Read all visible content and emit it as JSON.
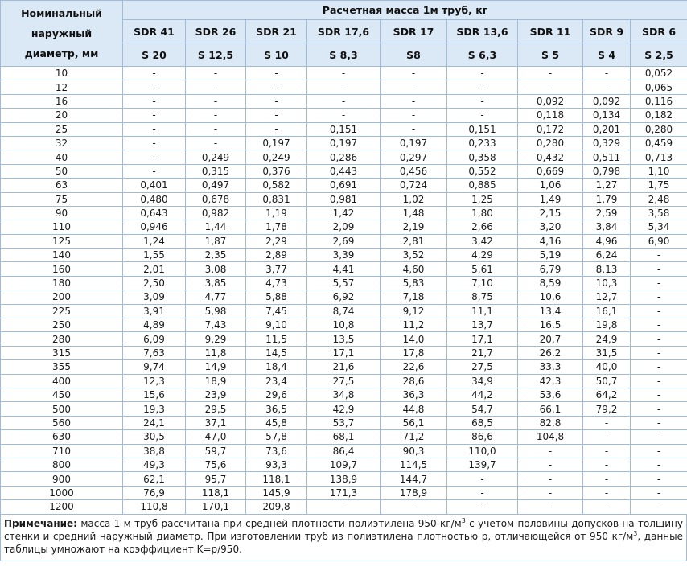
{
  "header": {
    "diameter_label": [
      "Номинальный",
      "наружный",
      "диаметр, мм"
    ],
    "title": "Расчетная масса 1м труб, кг",
    "columns": [
      {
        "sdr": "SDR 41",
        "s": "S 20"
      },
      {
        "sdr": "SDR 26",
        "s": "S 12,5"
      },
      {
        "sdr": "SDR 21",
        "s": "S 10"
      },
      {
        "sdr": "SDR 17,6",
        "s": "S 8,3"
      },
      {
        "sdr": "SDR 17",
        "s": "S8"
      },
      {
        "sdr": "SDR 13,6",
        "s": "S 6,3"
      },
      {
        "sdr": "SDR 11",
        "s": "S 5"
      },
      {
        "sdr": "SDR 9",
        "s": "S 4"
      },
      {
        "sdr": "SDR 6",
        "s": "S 2,5"
      }
    ]
  },
  "table": {
    "rows": [
      [
        "10",
        "-",
        "-",
        "-",
        "-",
        "-",
        "-",
        "-",
        "-",
        "0,052"
      ],
      [
        "12",
        "-",
        "-",
        "-",
        "-",
        "-",
        "-",
        "-",
        "-",
        "0,065"
      ],
      [
        "16",
        "-",
        "-",
        "-",
        "-",
        "-",
        "-",
        "0,092",
        "0,092",
        "0,116"
      ],
      [
        "20",
        "-",
        "-",
        "-",
        "-",
        "-",
        "-",
        "0,118",
        "0,134",
        "0,182"
      ],
      [
        "25",
        "-",
        "-",
        "-",
        "0,151",
        "-",
        "0,151",
        "0,172",
        "0,201",
        "0,280"
      ],
      [
        "32",
        "-",
        "-",
        "0,197",
        "0,197",
        "0,197",
        "0,233",
        "0,280",
        "0,329",
        "0,459"
      ],
      [
        "40",
        "-",
        "0,249",
        "0,249",
        "0,286",
        "0,297",
        "0,358",
        "0,432",
        "0,511",
        "0,713"
      ],
      [
        "50",
        "-",
        "0,315",
        "0,376",
        "0,443",
        "0,456",
        "0,552",
        "0,669",
        "0,798",
        "1,10"
      ],
      [
        "63",
        "0,401",
        "0,497",
        "0,582",
        "0,691",
        "0,724",
        "0,885",
        "1,06",
        "1,27",
        "1,75"
      ],
      [
        "75",
        "0,480",
        "0,678",
        "0,831",
        "0,981",
        "1,02",
        "1,25",
        "1,49",
        "1,79",
        "2,48"
      ],
      [
        "90",
        "0,643",
        "0,982",
        "1,19",
        "1,42",
        "1,48",
        "1,80",
        "2,15",
        "2,59",
        "3,58"
      ],
      [
        "110",
        "0,946",
        "1,44",
        "1,78",
        "2,09",
        "2,19",
        "2,66",
        "3,20",
        "3,84",
        "5,34"
      ],
      [
        "125",
        "1,24",
        "1,87",
        "2,29",
        "2,69",
        "2,81",
        "3,42",
        "4,16",
        "4,96",
        "6,90"
      ],
      [
        "140",
        "1,55",
        "2,35",
        "2,89",
        "3,39",
        "3,52",
        "4,29",
        "5,19",
        "6,24",
        "-"
      ],
      [
        "160",
        "2,01",
        "3,08",
        "3,77",
        "4,41",
        "4,60",
        "5,61",
        "6,79",
        "8,13",
        "-"
      ],
      [
        "180",
        "2,50",
        "3,85",
        "4,73",
        "5,57",
        "5,83",
        "7,10",
        "8,59",
        "10,3",
        "-"
      ],
      [
        "200",
        "3,09",
        "4,77",
        "5,88",
        "6,92",
        "7,18",
        "8,75",
        "10,6",
        "12,7",
        "-"
      ],
      [
        "225",
        "3,91",
        "5,98",
        "7,45",
        "8,74",
        "9,12",
        "11,1",
        "13,4",
        "16,1",
        "-"
      ],
      [
        "250",
        "4,89",
        "7,43",
        "9,10",
        "10,8",
        "11,2",
        "13,7",
        "16,5",
        "19,8",
        "-"
      ],
      [
        "280",
        "6,09",
        "9,29",
        "11,5",
        "13,5",
        "14,0",
        "17,1",
        "20,7",
        "24,9",
        "-"
      ],
      [
        "315",
        "7,63",
        "11,8",
        "14,5",
        "17,1",
        "17,8",
        "21,7",
        "26,2",
        "31,5",
        "-"
      ],
      [
        "355",
        "9,74",
        "14,9",
        "18,4",
        "21,6",
        "22,6",
        "27,5",
        "33,3",
        "40,0",
        "-"
      ],
      [
        "400",
        "12,3",
        "18,9",
        "23,4",
        "27,5",
        "28,6",
        "34,9",
        "42,3",
        "50,7",
        "-"
      ],
      [
        "450",
        "15,6",
        "23,9",
        "29,6",
        "34,8",
        "36,3",
        "44,2",
        "53,6",
        "64,2",
        "-"
      ],
      [
        "500",
        "19,3",
        "29,5",
        "36,5",
        "42,9",
        "44,8",
        "54,7",
        "66,1",
        "79,2",
        "-"
      ],
      [
        "560",
        "24,1",
        "37,1",
        "45,8",
        "53,7",
        "56,1",
        "68,5",
        "82,8",
        "-",
        "-"
      ],
      [
        "630",
        "30,5",
        "47,0",
        "57,8",
        "68,1",
        "71,2",
        "86,6",
        "104,8",
        "-",
        "-"
      ],
      [
        "710",
        "38,8",
        "59,7",
        "73,6",
        "86,4",
        "90,3",
        "110,0",
        "-",
        "-",
        "-"
      ],
      [
        "800",
        "49,3",
        "75,6",
        "93,3",
        "109,7",
        "114,5",
        "139,7",
        "-",
        "-",
        "-"
      ],
      [
        "900",
        "62,1",
        "95,7",
        "118,1",
        "138,9",
        "144,7",
        "-",
        "-",
        "-",
        "-"
      ],
      [
        "1000",
        "76,9",
        "118,1",
        "145,9",
        "171,3",
        "178,9",
        "-",
        "-",
        "-",
        "-"
      ],
      [
        "1200",
        "110,8",
        "170,1",
        "209,8",
        "-",
        "-",
        "-",
        "-",
        "-",
        "-"
      ]
    ]
  },
  "note": {
    "label": "Примечание:",
    "parts": [
      " масса 1 м труб рассчитана при средней плотности полиэтилена 950 кг/м",
      "3",
      " с учетом половины допусков на толщину стенки и средний наружный диаметр. При изготовлении труб из полиэтилена плотностью р, отличающейся от 950 кг/м",
      "3",
      ", данные таблицы умножают на коэффициент K=р/950."
    ]
  }
}
